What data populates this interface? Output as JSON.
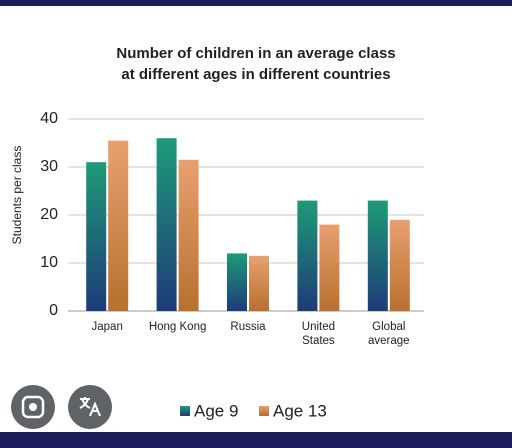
{
  "chart_data": {
    "type": "bar",
    "title": [
      "Number of children in an average class",
      "at different ages in different countries"
    ],
    "y_label": "Students per class",
    "categories": [
      "Japan",
      "Hong Kong",
      "Russia",
      "United States",
      "Global average"
    ],
    "series": [
      {
        "name": "Age 9",
        "color": "#1f9a78",
        "values": [
          31,
          36,
          12,
          23,
          23
        ]
      },
      {
        "name": "Age 13",
        "color": "#e8a070",
        "values": [
          35.5,
          31.5,
          11.5,
          18,
          19
        ]
      }
    ],
    "ylim": [
      0,
      40
    ],
    "yticks": [
      0,
      10,
      20,
      30,
      40
    ],
    "grid": true
  }
}
